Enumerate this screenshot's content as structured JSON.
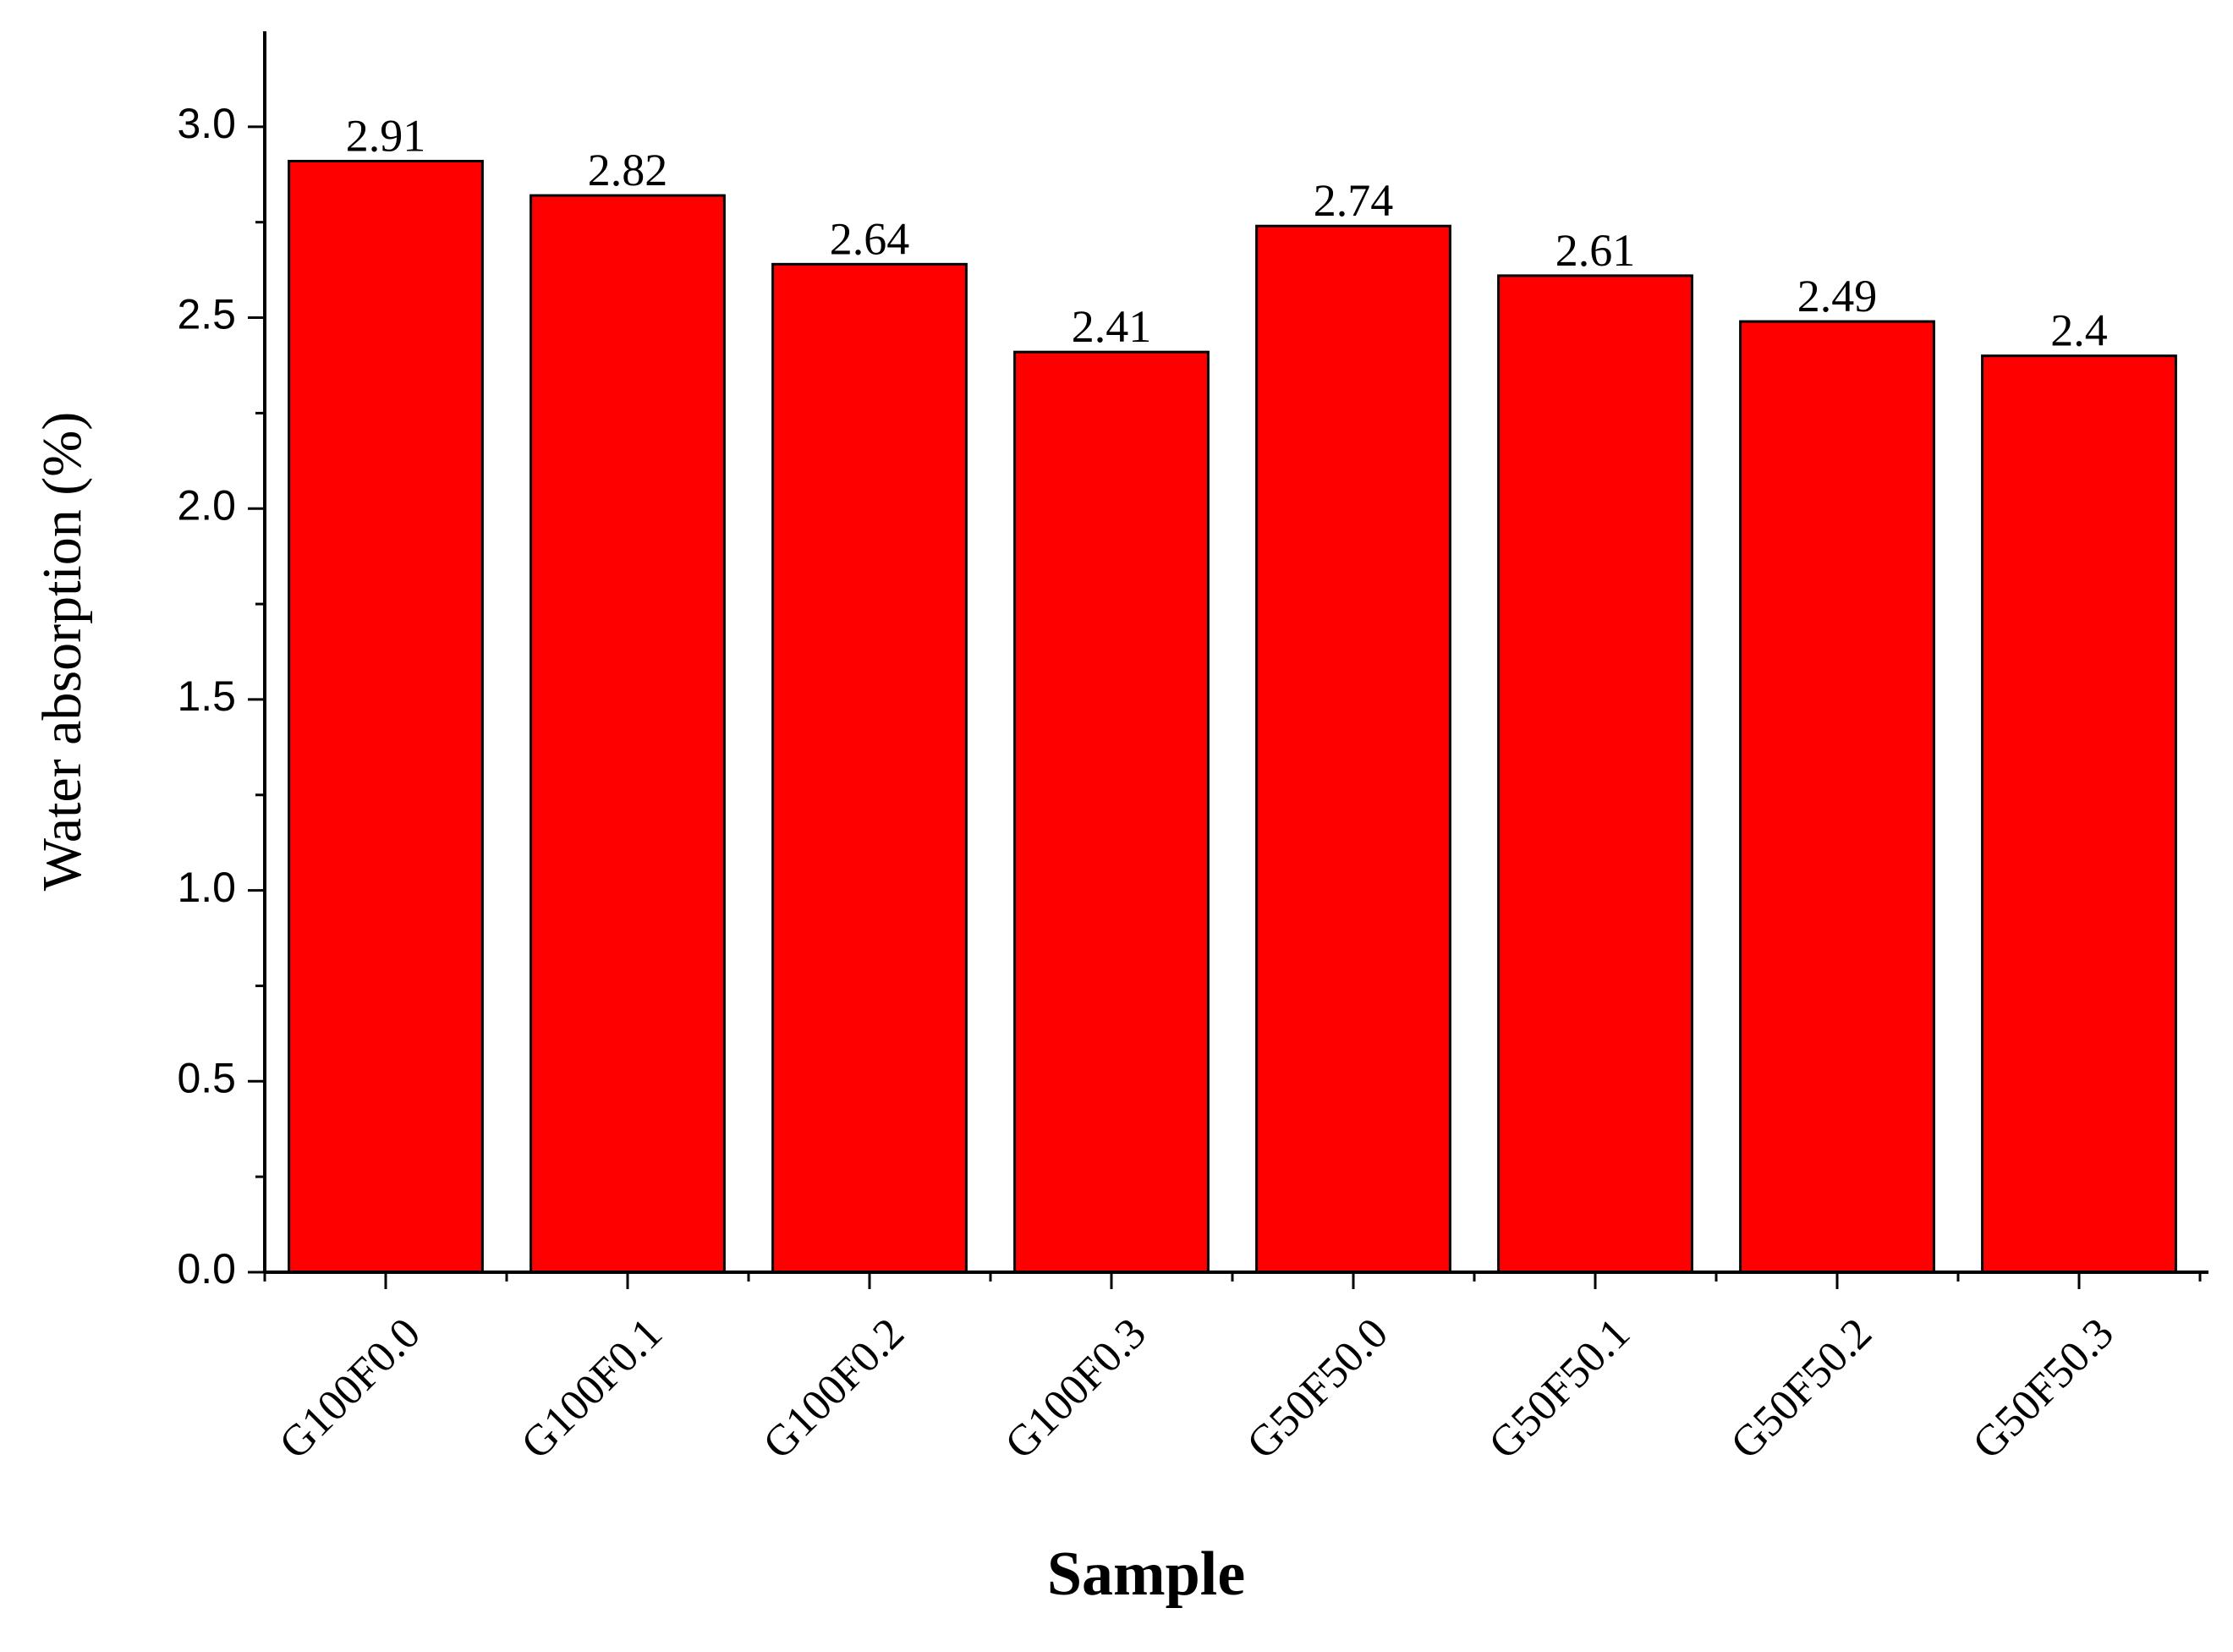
{
  "chart_data": {
    "type": "bar",
    "x_label": "Sample",
    "y_label": "Water absorption (%)",
    "categories": [
      "G100F0.0",
      "G100F0.1",
      "G100F0.2",
      "G100F0.3",
      "G50F50.0",
      "G50F50.1",
      "G50F50.2",
      "G50F50.3"
    ],
    "values": [
      2.91,
      2.82,
      2.64,
      2.41,
      2.74,
      2.61,
      2.49,
      2.4
    ],
    "color": "#ff0000",
    "ylim": [
      0,
      3.25
    ],
    "yticks": [
      {
        "value": 0,
        "label": "0.0"
      },
      0.5,
      {
        "value": 1,
        "label": "1.0"
      },
      1.5,
      {
        "value": 2,
        "label": "2.0"
      },
      2.5,
      {
        "value": 3,
        "label": "3.0"
      }
    ],
    "grid": false
  }
}
